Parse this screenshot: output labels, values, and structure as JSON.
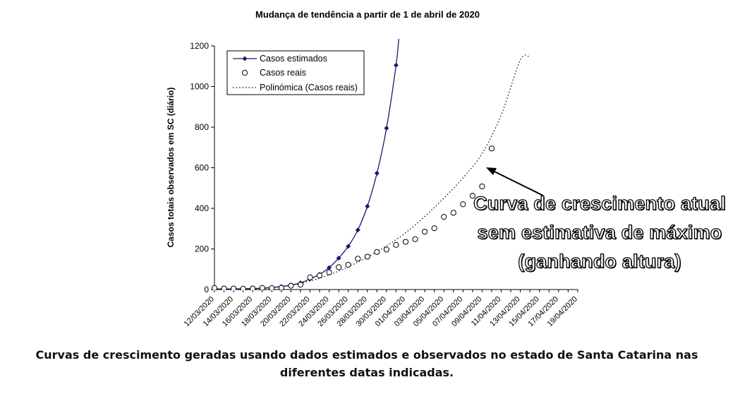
{
  "chart_data": {
    "type": "line",
    "title": "Mudança de tendência a partir de 1 de abril de 2020",
    "ylabel": "Casos totais observados em SC (diário)",
    "xlabel": "",
    "ylim": [
      0,
      1200
    ],
    "yticks": [
      "0",
      "200",
      "400",
      "600",
      "800",
      "1000",
      "1200"
    ],
    "xticks": [
      "12/03/2020",
      "14/03/2020",
      "16/03/2020",
      "18/03/2020",
      "20/03/2020",
      "22/03/2020",
      "24/03/2020",
      "26/03/2020",
      "28/03/2020",
      "30/03/2020",
      "01/04/2020",
      "03/04/2020",
      "05/04/2020",
      "07/04/2020",
      "09/04/2020",
      "11/04/2020",
      "13/04/2020",
      "15/04/2020",
      "17/04/2020",
      "19/04/2020"
    ],
    "legend_position": "top-left",
    "grid": false,
    "series": [
      {
        "name": "Casos estimados",
        "style": "line-diamond",
        "color": "#1a1a6e",
        "x": [
          "12/03/2020",
          "13/03/2020",
          "14/03/2020",
          "15/03/2020",
          "16/03/2020",
          "17/03/2020",
          "18/03/2020",
          "19/03/2020",
          "20/03/2020",
          "21/03/2020",
          "22/03/2020",
          "23/03/2020",
          "24/03/2020",
          "25/03/2020",
          "26/03/2020",
          "27/03/2020",
          "28/03/2020",
          "29/03/2020",
          "30/03/2020",
          "31/03/2020"
        ],
        "y": [
          3,
          3,
          3,
          4,
          5,
          7,
          10,
          15,
          22,
          33,
          52,
          75,
          108,
          155,
          213,
          293,
          410,
          573,
          795,
          1105
        ]
      },
      {
        "name": "Casos reais",
        "style": "open-circle",
        "color": "#000000",
        "x": [
          "12/03/2020",
          "13/03/2020",
          "14/03/2020",
          "15/03/2020",
          "16/03/2020",
          "17/03/2020",
          "18/03/2020",
          "19/03/2020",
          "20/03/2020",
          "21/03/2020",
          "22/03/2020",
          "23/03/2020",
          "24/03/2020",
          "25/03/2020",
          "26/03/2020",
          "27/03/2020",
          "28/03/2020",
          "29/03/2020",
          "30/03/2020",
          "31/03/2020",
          "01/04/2020",
          "02/04/2020",
          "03/04/2020",
          "04/04/2020",
          "05/04/2020",
          "06/04/2020",
          "07/04/2020",
          "08/04/2020",
          "09/04/2020",
          "10/04/2020"
        ],
        "y": [
          7,
          5,
          5,
          4,
          5,
          8,
          7,
          8,
          19,
          24,
          60,
          69,
          85,
          110,
          122,
          152,
          162,
          185,
          197,
          220,
          235,
          248,
          285,
          302,
          358,
          378,
          420,
          462,
          508,
          695
        ]
      },
      {
        "name": "Polinómica (Casos reais)",
        "style": "dotted-line",
        "color": "#000000",
        "x": [
          "12/03/2020",
          "14/03/2020",
          "16/03/2020",
          "18/03/2020",
          "20/03/2020",
          "22/03/2020",
          "24/03/2020",
          "26/03/2020",
          "28/03/2020",
          "30/03/2020",
          "01/04/2020",
          "03/04/2020",
          "05/04/2020",
          "07/04/2020",
          "09/04/2020",
          "11/04/2020",
          "13/04/2020",
          "14/04/2020"
        ],
        "y": [
          0,
          1,
          3,
          9,
          21,
          42,
          72,
          112,
          160,
          215,
          280,
          360,
          450,
          550,
          670,
          860,
          1130,
          1145
        ]
      }
    ]
  },
  "annotation": {
    "line1": "Curva de crescimento atual",
    "line2": "sem estimativa de máximo",
    "line3": "(ganhando altura)"
  },
  "caption": {
    "line1": "Curvas de crescimento geradas usando dados estimados e observados no estado de Santa Catarina nas",
    "line2": "diferentes datas indicadas."
  }
}
